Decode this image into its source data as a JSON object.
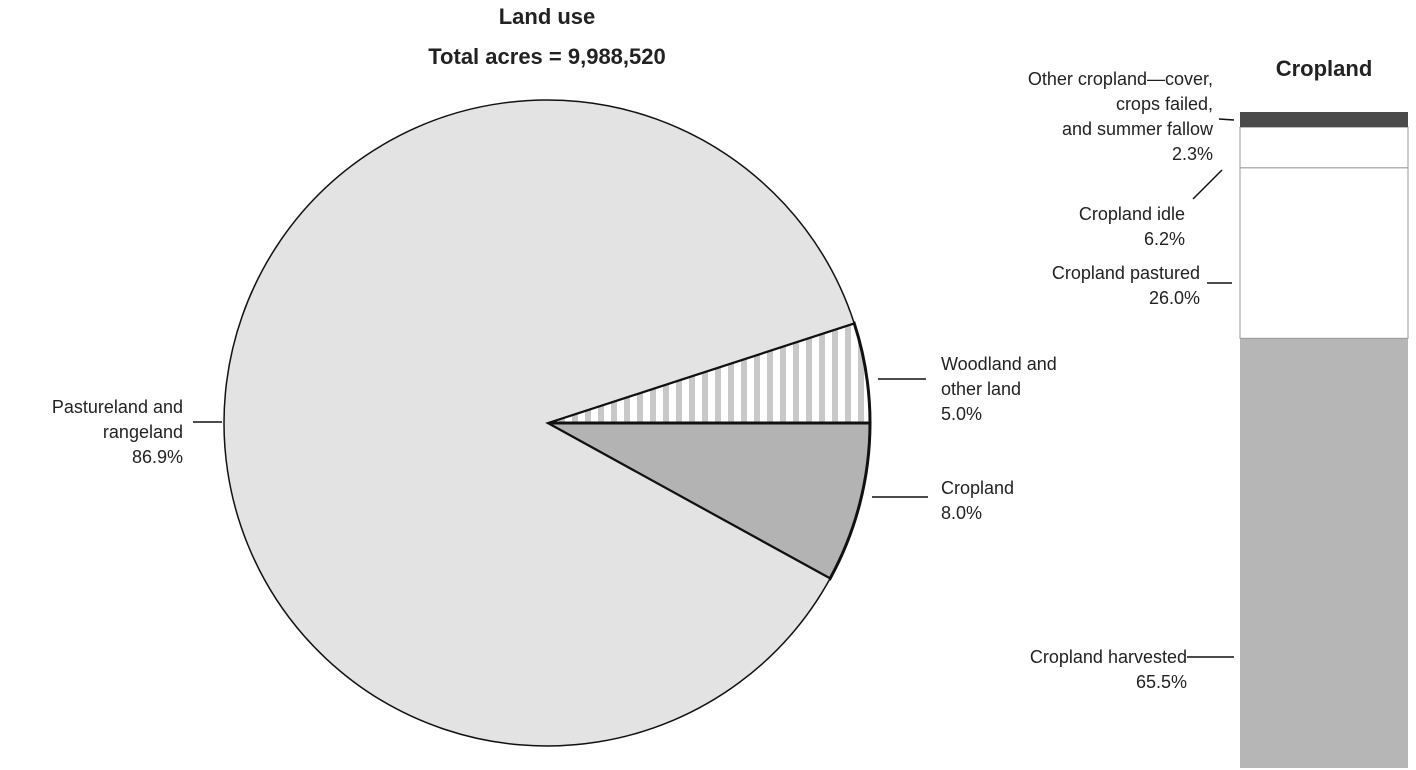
{
  "chart_data": [
    {
      "type": "pie",
      "title": "Land use",
      "subtitle": "Total acres = 9,988,520",
      "categories": [
        "Pastureland and\nrangeland",
        "Woodland and\nother land",
        "Cropland"
      ],
      "values": [
        86.9,
        5.0,
        8.0
      ],
      "value_labels": [
        "86.9%",
        "5.0%",
        "8.0%"
      ],
      "colors": [
        "#e3e3e3",
        "#ffffff",
        "#b3b3b3"
      ],
      "hatch": [
        null,
        "vertical",
        null
      ]
    },
    {
      "type": "stacked-bar",
      "title": "Cropland",
      "categories": [
        "Cropland harvested",
        "Cropland pastured",
        "Cropland idle",
        "Other cropland—cover,\ncrops failed,\nand summer fallow"
      ],
      "values": [
        65.5,
        26.0,
        6.2,
        2.3
      ],
      "value_labels": [
        "65.5%",
        "26.0%",
        "6.2%",
        "2.3%"
      ],
      "colors": [
        "#b6b6b6",
        "#ffffff",
        "#ffffff",
        "#4a4a4a"
      ],
      "ylim": [
        0,
        100
      ]
    }
  ]
}
